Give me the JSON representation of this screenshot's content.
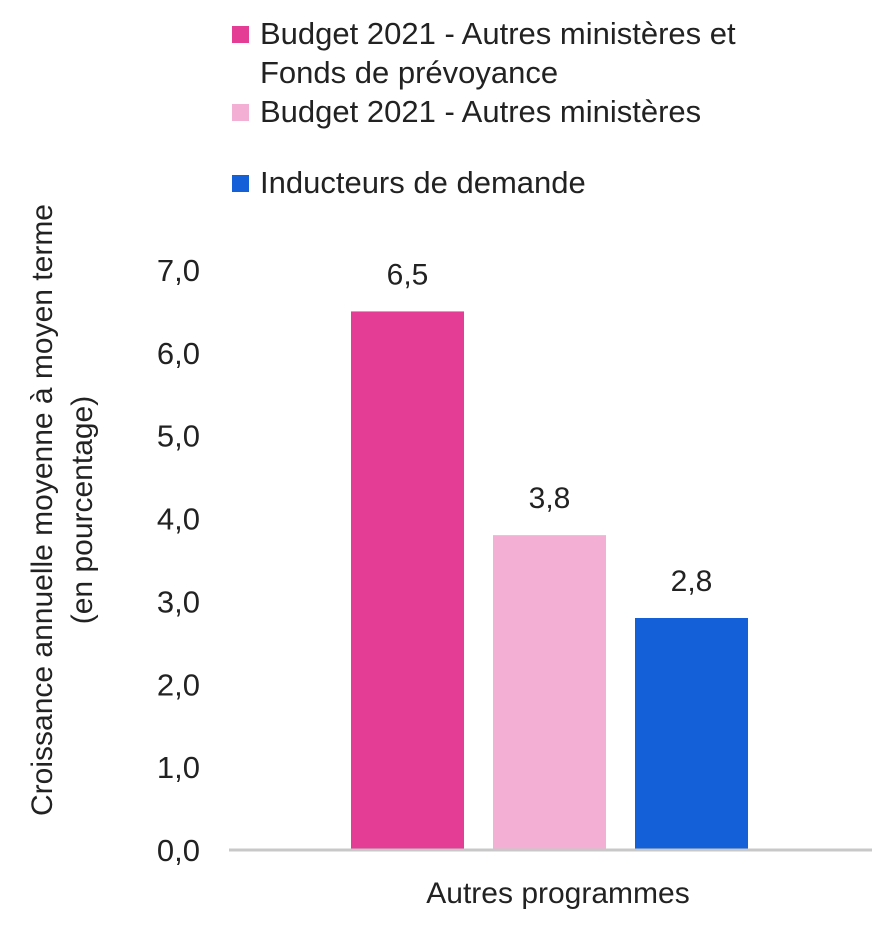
{
  "chart_data": {
    "type": "bar",
    "categories": [
      "Autres programmes"
    ],
    "series": [
      {
        "name": "Budget 2021 - Autres ministères et Fonds de prévoyance",
        "values": [
          6.5
        ],
        "color": "#e33d96"
      },
      {
        "name": "Budget 2021 - Autres ministères",
        "values": [
          3.8
        ],
        "color": "#f4b0d4"
      },
      {
        "name": "Inducteurs de demande",
        "values": [
          2.8
        ],
        "color": "#1460d8"
      }
    ],
    "data_labels": [
      "6,5",
      "3,8",
      "2,8"
    ],
    "ylabel": "Croissance annuelle moyenne à moyen terme (en pourcentage)",
    "ylabel_lines": [
      "Croissance annuelle moyenne à moyen terme",
      "(en pourcentage)"
    ],
    "ylim": [
      0,
      7
    ],
    "yticks": [
      "0,0",
      "1,0",
      "2,0",
      "3,0",
      "4,0",
      "5,0",
      "6,0",
      "7,0"
    ],
    "grid": false,
    "legend_position": "top"
  }
}
